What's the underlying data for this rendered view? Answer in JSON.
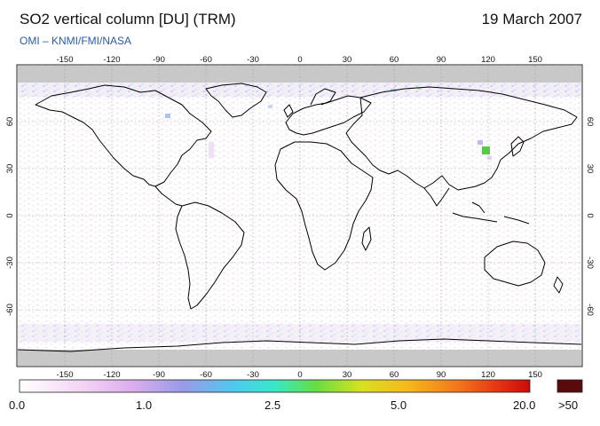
{
  "header": {
    "title": "SO2 vertical column [DU] (TRM)",
    "date": "19 March 2007",
    "credit": "OMI  –  KNMI/FMI/NASA"
  },
  "map": {
    "projection": "equirectangular",
    "lon_ticks": [
      "-150",
      "-120",
      "-90",
      "-60",
      "-30",
      "0",
      "30",
      "60",
      "90",
      "120",
      "150"
    ],
    "lat_ticks": [
      "60",
      "30",
      "0",
      "-30",
      "-60"
    ],
    "land_outline_color": "#000000",
    "no_data_color": "#c8c8c8",
    "grid": "dotted"
  },
  "colorbar": {
    "labels": [
      "0.0",
      "1.0",
      "2.5",
      "5.0",
      "20.0"
    ],
    "overflow_label": ">50",
    "overflow_color": "#5a0a0a",
    "gradient_colors": [
      "#ffffff",
      "#f3d6f3",
      "#dcaeee",
      "#9a9ae8",
      "#4ec9f0",
      "#38e8c8",
      "#66dd44",
      "#d8e022",
      "#f5b91d",
      "#f2761b",
      "#e43313",
      "#cc0a0a"
    ]
  }
}
